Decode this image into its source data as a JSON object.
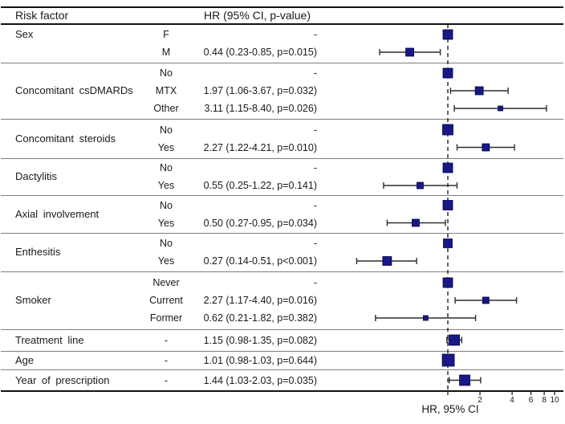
{
  "colors": {
    "marker": "#181889",
    "marker_border": "#000040",
    "error_bar": "#2e2e2e",
    "dashed_line": "#111111",
    "separator": "#7e7e7e",
    "frame": "#111111",
    "text": "#1a1a1a"
  },
  "chart_data": {
    "type": "forest",
    "x_scale": "log",
    "xlabel": "HR, 95% CI",
    "col_risk_factor": "Risk factor",
    "col_hr": "HR (95% CI, p-value)",
    "reference_value": 1,
    "x_ticks": [
      {
        "v": 2,
        "label": "2"
      },
      {
        "v": 4,
        "label": "4"
      },
      {
        "v": 6,
        "label": "6"
      },
      {
        "v": 8,
        "label": "8"
      },
      {
        "v": 10,
        "label": "10"
      }
    ],
    "groups": [
      {
        "label": "Sex",
        "rows": [
          {
            "level": "F",
            "text": "-",
            "ref": true,
            "hr": 1,
            "weight": 12
          },
          {
            "level": "M",
            "text": "0.44 (0.23-0.85, p=0.015)",
            "ref": false,
            "hr": 0.44,
            "lo": 0.23,
            "hi": 0.85,
            "p": "0.015",
            "weight": 10
          }
        ]
      },
      {
        "label": "Concomitant csDMARDs",
        "rows": [
          {
            "level": "No",
            "text": "-",
            "ref": true,
            "hr": 1,
            "weight": 12
          },
          {
            "level": "MTX",
            "text": "1.97 (1.06-3.67, p=0.032)",
            "ref": false,
            "hr": 1.97,
            "lo": 1.06,
            "hi": 3.67,
            "p": "0.032",
            "weight": 10
          },
          {
            "level": "Other",
            "text": "3.11 (1.15-8.40, p=0.026)",
            "ref": false,
            "hr": 3.11,
            "lo": 1.15,
            "hi": 8.4,
            "p": "0.026",
            "weight": 6
          }
        ]
      },
      {
        "label": "Concomitant steroids",
        "rows": [
          {
            "level": "No",
            "text": "-",
            "ref": true,
            "hr": 1,
            "weight": 13
          },
          {
            "level": "Yes",
            "text": "2.27 (1.22-4.21, p=0.010)",
            "ref": false,
            "hr": 2.27,
            "lo": 1.22,
            "hi": 4.21,
            "p": "0.010",
            "weight": 9
          }
        ]
      },
      {
        "label": "Dactylitis",
        "rows": [
          {
            "level": "No",
            "text": "-",
            "ref": true,
            "hr": 1,
            "weight": 12
          },
          {
            "level": "Yes",
            "text": "0.55 (0.25-1.22, p=0.141)",
            "ref": false,
            "hr": 0.55,
            "lo": 0.25,
            "hi": 1.22,
            "p": "0.141",
            "weight": 8
          }
        ]
      },
      {
        "label": "Axial involvement",
        "rows": [
          {
            "level": "No",
            "text": "-",
            "ref": true,
            "hr": 1,
            "weight": 12
          },
          {
            "level": "Yes",
            "text": "0.50 (0.27-0.95, p=0.034)",
            "ref": false,
            "hr": 0.5,
            "lo": 0.27,
            "hi": 0.95,
            "p": "0.034",
            "weight": 9
          }
        ]
      },
      {
        "label": "Enthesitis",
        "rows": [
          {
            "level": "No",
            "text": "-",
            "ref": true,
            "hr": 1,
            "weight": 11
          },
          {
            "level": "Yes",
            "text": "0.27 (0.14-0.51, p<0.001)",
            "ref": false,
            "hr": 0.27,
            "lo": 0.14,
            "hi": 0.51,
            "p": "<0.001",
            "weight": 11
          }
        ]
      },
      {
        "label": "Smoker",
        "rows": [
          {
            "level": "Never",
            "text": "-",
            "ref": true,
            "hr": 1,
            "weight": 12
          },
          {
            "level": "Current",
            "text": "2.27 (1.17-4.40, p=0.016)",
            "ref": false,
            "hr": 2.27,
            "lo": 1.17,
            "hi": 4.4,
            "p": "0.016",
            "weight": 8
          },
          {
            "level": "Former",
            "text": "0.62 (0.21-1.82, p=0.382)",
            "ref": false,
            "hr": 0.62,
            "lo": 0.21,
            "hi": 1.82,
            "p": "0.382",
            "weight": 6
          }
        ]
      },
      {
        "label": "Treatment line",
        "rows": [
          {
            "level": "-",
            "text": "1.15 (0.98-1.35, p=0.082)",
            "ref": false,
            "hr": 1.15,
            "lo": 0.98,
            "hi": 1.35,
            "p": "0.082",
            "weight": 13
          }
        ]
      },
      {
        "label": "Age",
        "rows": [
          {
            "level": "-",
            "text": "1.01 (0.98-1.03, p=0.644)",
            "ref": false,
            "hr": 1.01,
            "lo": 0.98,
            "hi": 1.03,
            "p": "0.644",
            "weight": 15
          }
        ]
      },
      {
        "label": "Year of prescription",
        "rows": [
          {
            "level": "-",
            "text": "1.44 (1.03-2.03, p=0.035)",
            "ref": false,
            "hr": 1.44,
            "lo": 1.03,
            "hi": 2.03,
            "p": "0.035",
            "weight": 13
          }
        ]
      }
    ]
  }
}
